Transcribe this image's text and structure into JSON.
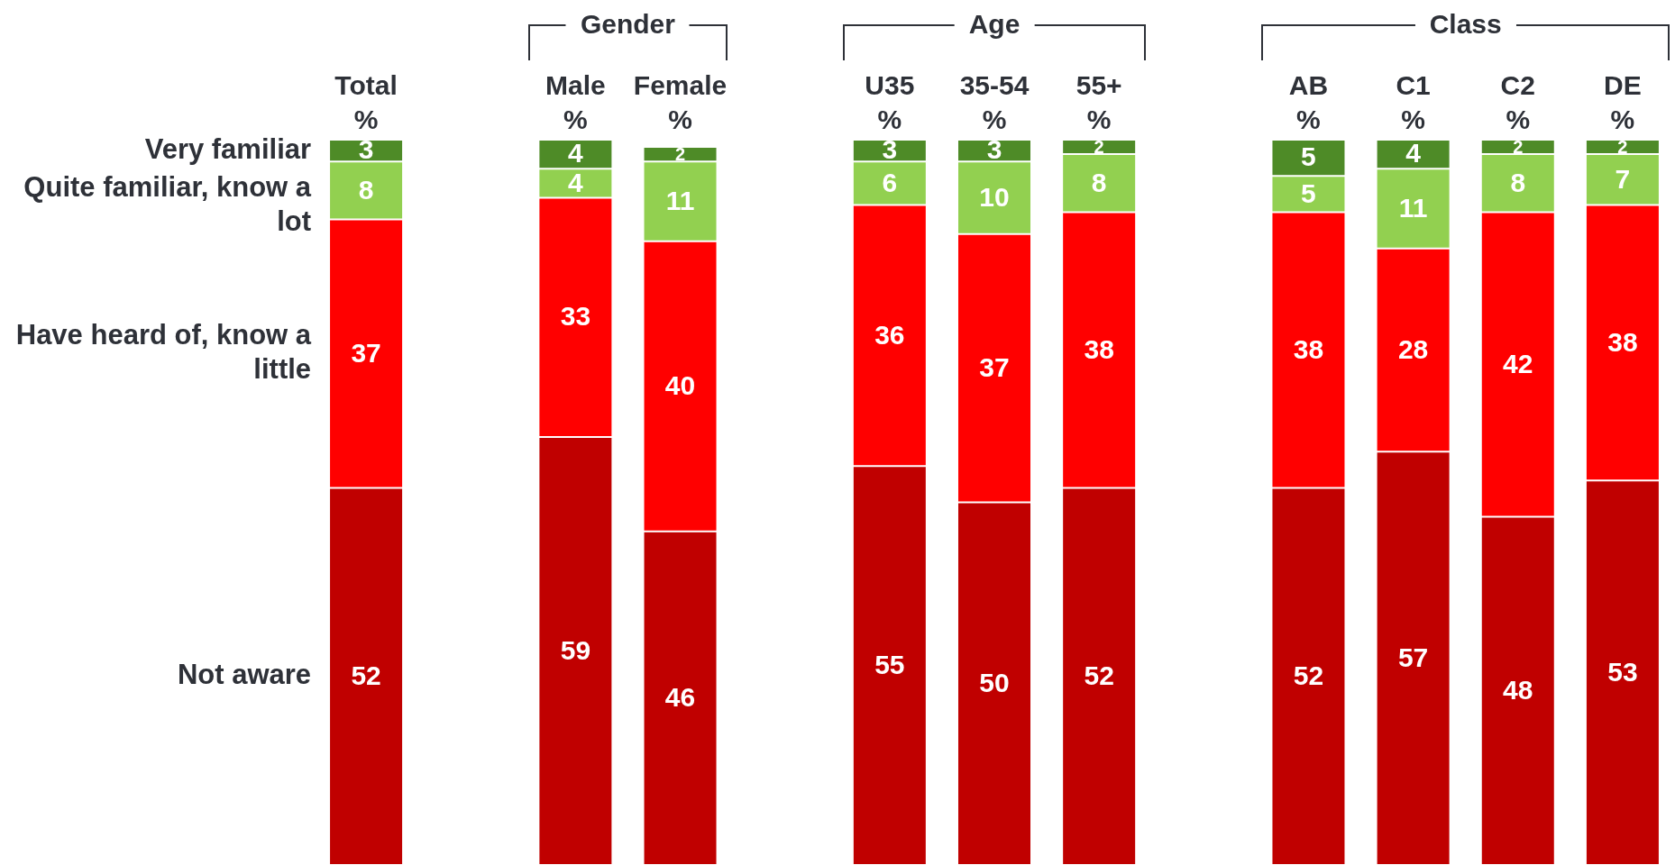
{
  "chart_data": {
    "type": "bar",
    "stacked": true,
    "categories": [
      "Total %",
      null,
      "Male %",
      "Female %",
      null,
      "U35 %",
      "35-54 %",
      "55+ %",
      null,
      "AB %",
      "C1 %",
      "C2 %",
      "DE %"
    ],
    "series": [
      {
        "name": "Not aware",
        "color": "#c00000",
        "values": [
          52,
          null,
          59,
          46,
          null,
          55,
          50,
          52,
          null,
          52,
          57,
          48,
          53
        ]
      },
      {
        "name": "Have heard of, know a little",
        "color": "#ff0000",
        "values": [
          37,
          null,
          33,
          40,
          null,
          36,
          37,
          38,
          null,
          38,
          28,
          42,
          38
        ]
      },
      {
        "name": "Quite familiar, know a lot",
        "color": "#92d050",
        "values": [
          8,
          null,
          4,
          11,
          null,
          6,
          10,
          8,
          null,
          5,
          11,
          8,
          7
        ]
      },
      {
        "name": "Very familiar",
        "color": "#4e8b27",
        "values": [
          3,
          null,
          4,
          2,
          null,
          3,
          3,
          2,
          null,
          5,
          4,
          2,
          2
        ]
      }
    ],
    "ylim": [
      0,
      100
    ],
    "data_labels": true,
    "tick_labels": "x",
    "annotations": [
      "Gender",
      "Age",
      "Class"
    ]
  }
}
